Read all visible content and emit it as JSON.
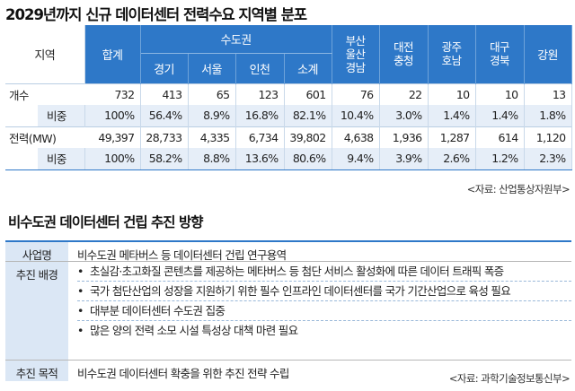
{
  "title": "2029년까지 신규 데이터센터 전력수요 지역별 분포",
  "table": {
    "corner": "지역",
    "total": "합계",
    "metro": "수도권",
    "metro_cols": [
      "경기",
      "서울",
      "인천",
      "소계"
    ],
    "busan": [
      "부산",
      "울산",
      "경남"
    ],
    "daejeon": [
      "대전",
      "충청"
    ],
    "gwangju": [
      "광주",
      "호남"
    ],
    "daegu": [
      "대구",
      "경북"
    ],
    "gangwon": "강원",
    "rows": [
      {
        "label": "개수",
        "values": [
          "732",
          "413",
          "65",
          "123",
          "601",
          "76",
          "22",
          "10",
          "10",
          "13"
        ]
      },
      {
        "label": "비중",
        "values": [
          "100%",
          "56.4%",
          "8.9%",
          "16.8%",
          "82.1%",
          "10.4%",
          "3.0%",
          "1.4%",
          "1.4%",
          "1.8%"
        ]
      },
      {
        "label": "전력(MW)",
        "values": [
          "49,397",
          "28,733",
          "4,335",
          "6,734",
          "39,802",
          "4,638",
          "1,936",
          "1,287",
          "614",
          "1,120"
        ]
      },
      {
        "label": "비중",
        "values": [
          "100%",
          "58.2%",
          "8.8%",
          "13.6%",
          "80.6%",
          "9.4%",
          "3.9%",
          "2.6%",
          "1.2%",
          "2.3%"
        ]
      }
    ]
  },
  "source1": "<자료: 산업통상자원부>",
  "section_title": "비수도권 데이터센터 건립 추진 방향",
  "plan": {
    "project_label": "사업명",
    "project_value": "비수도권 메타버스 등 데이터센터 건립 연구용역",
    "background_label": "추진 배경",
    "bullet_char": "•",
    "background_items": [
      "초실감·초고화질 콘텐츠를 제공하는 메타버스 등 첨단 서비스 활성화에 따른 데이터 트래픽 폭증",
      "국가 첨단산업의 성장을 지원하기 위한 필수 인프라인 데이터센터를 국가 기간산업으로 육성 필요",
      "대부분 데이터센터 수도권 집중",
      "많은 양의 전력 소모 시설 특성상 대책 마련 필요"
    ],
    "goal_label": "추진 목적",
    "goal_value": "비수도권 데이터센터 확충을 위한 추진 전략 수립"
  },
  "source2": "<자료: 과학기술정보통신부>",
  "colors": {
    "accent": "#2e78c8",
    "sub_row": "#e6eef8",
    "plan_key": "#dbe7f5"
  }
}
